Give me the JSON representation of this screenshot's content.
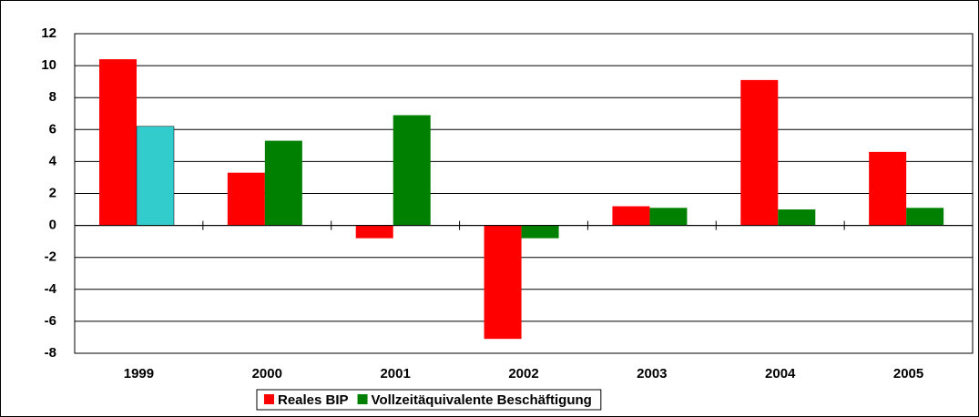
{
  "chart_data": {
    "type": "bar",
    "categories": [
      "1999",
      "2000",
      "2001",
      "2002",
      "2003",
      "2004",
      "2005"
    ],
    "series": [
      {
        "name": "Reales BIP",
        "color": "#ff0000",
        "values": [
          10.4,
          3.3,
          -0.8,
          -7.1,
          1.2,
          9.1,
          4.6
        ]
      },
      {
        "name": "Vollzeitäquivalente Beschäftigung",
        "color": "#008000",
        "values": [
          6.2,
          5.3,
          6.9,
          -0.8,
          1.1,
          1.0,
          1.1
        ],
        "colors": [
          "#33cccc",
          "#008000",
          "#008000",
          "#008000",
          "#008000",
          "#008000",
          "#008000"
        ]
      }
    ],
    "ylim": [
      -8,
      12
    ],
    "yticks": [
      -8,
      -6,
      -4,
      -2,
      0,
      2,
      4,
      6,
      8,
      10,
      12
    ],
    "grid": true,
    "legend": "bottom"
  }
}
